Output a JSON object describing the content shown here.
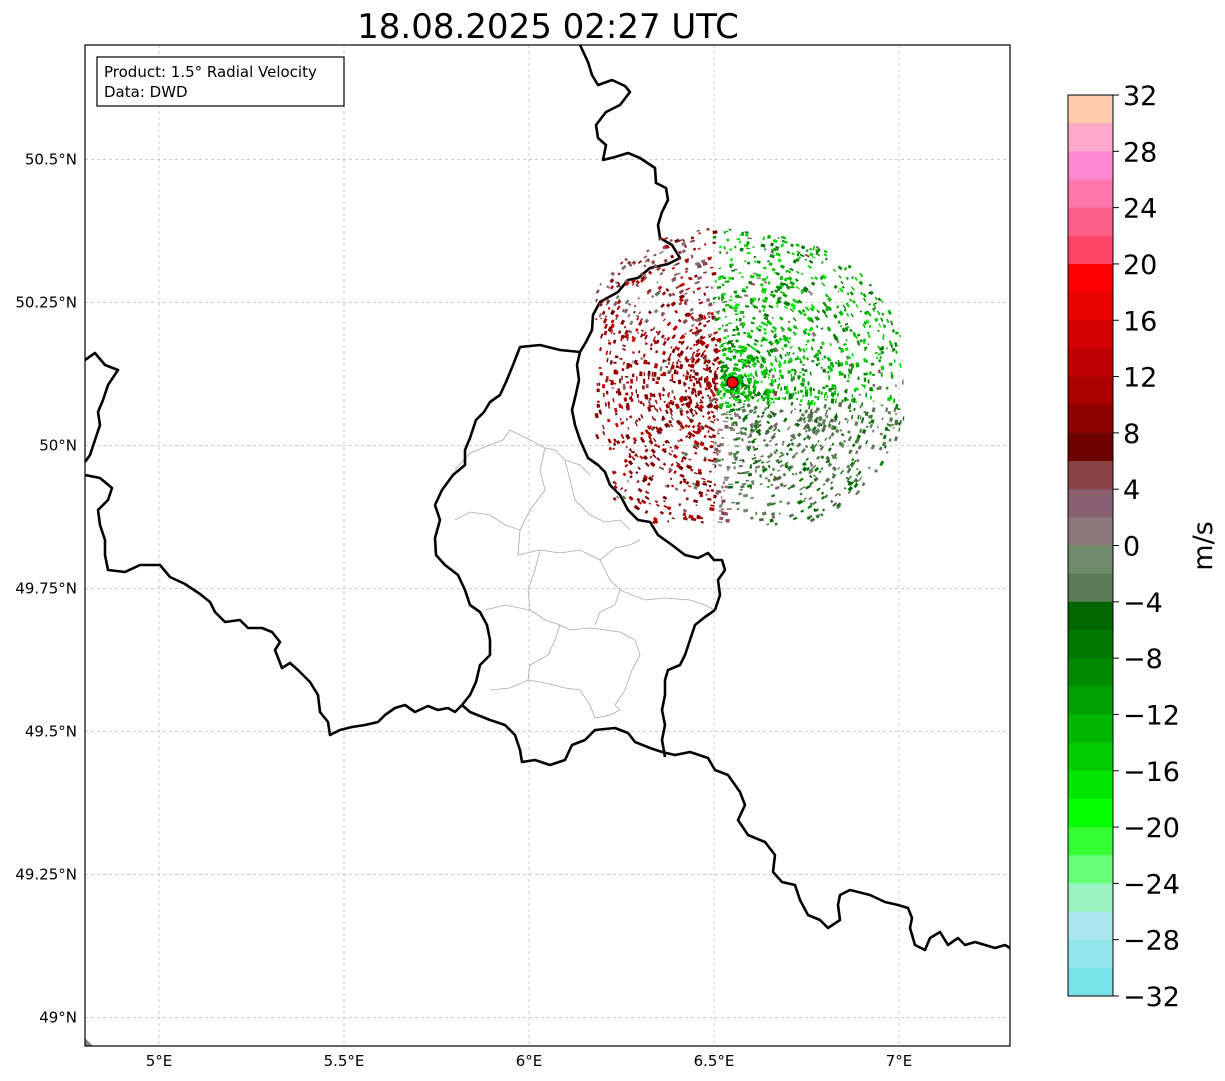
{
  "title": "18.08.2025 02:27 UTC",
  "info_box": {
    "product": "Product: 1.5° Radial Velocity",
    "data": "Data: DWD"
  },
  "map": {
    "lon_range": [
      4.8,
      7.3
    ],
    "lat_range": [
      48.95,
      50.7
    ],
    "lon_ticks": [
      {
        "value": 5.0,
        "label": "5°E"
      },
      {
        "value": 5.5,
        "label": "5.5°E"
      },
      {
        "value": 6.0,
        "label": "6°E"
      },
      {
        "value": 6.5,
        "label": "6.5°E"
      },
      {
        "value": 7.0,
        "label": "7°E"
      }
    ],
    "lat_ticks": [
      {
        "value": 50.5,
        "label": "50.5°N"
      },
      {
        "value": 50.25,
        "label": "50.25°N"
      },
      {
        "value": 50.0,
        "label": "50°N"
      },
      {
        "value": 49.75,
        "label": "49.75°N"
      },
      {
        "value": 49.5,
        "label": "49.5°N"
      },
      {
        "value": 49.25,
        "label": "49.25°N"
      },
      {
        "value": 49.0,
        "label": "49°N"
      }
    ],
    "grid": true,
    "radar_site": {
      "lon": 6.55,
      "lat": 50.11,
      "color": "#ff0000"
    },
    "echo_extent": {
      "lon": [
        6.19,
        7.02
      ],
      "lat": [
        49.87,
        50.4
      ]
    }
  },
  "colorbar": {
    "unit": "m/s",
    "min": -32,
    "max": 32,
    "tick_labels": [
      "32",
      "28",
      "24",
      "20",
      "16",
      "12",
      "8",
      "4",
      "0",
      "−4",
      "−8",
      "−12",
      "−16",
      "−20",
      "−24",
      "−28",
      "−32"
    ],
    "tick_values": [
      32,
      28,
      24,
      20,
      16,
      12,
      8,
      4,
      0,
      -4,
      -8,
      -12,
      -16,
      -20,
      -24,
      -28,
      -32
    ],
    "colors_top_to_bottom": [
      "#ffccaa",
      "#ffaac8",
      "#ff88d0",
      "#ff77aa",
      "#ff5f88",
      "#ff4466",
      "#ff0000",
      "#e60000",
      "#d40000",
      "#c00000",
      "#aa0000",
      "#8c0000",
      "#6e0000",
      "#884444",
      "#886070",
      "#8a7878",
      "#708a6c",
      "#5a7c55",
      "#006600",
      "#007700",
      "#008a00",
      "#00a000",
      "#00b800",
      "#00cc00",
      "#00e600",
      "#00ff00",
      "#33ff33",
      "#66ff77",
      "#99f2c0",
      "#aae8ee",
      "#90e8ee",
      "#77e2e8"
    ]
  }
}
